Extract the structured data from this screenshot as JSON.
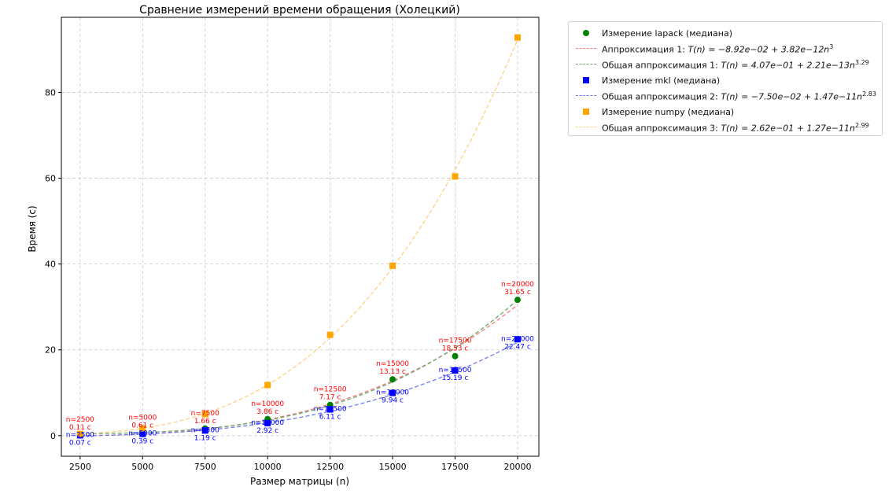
{
  "colors": {
    "lapack": "#008000",
    "lapack_fit": "#f08080",
    "lapack_general_fit": "#6aa86a",
    "mkl": "#0000ff",
    "mkl_fit": "#6f7ef0",
    "numpy": "#ffa500",
    "numpy_fit": "#ffd27f",
    "label_red": "#ff0000",
    "label_blue": "#0000ff",
    "grid": "#cccccc"
  },
  "legend": {
    "lapack_label": "Измерение lapack (медиана)",
    "fit1_prefix": "Аппроксимация 1: ",
    "fit1_formula": "T(n) = −8.92e−02 + 3.82e−12n",
    "fit1_exp": "3",
    "gen1_prefix": "Общая аппроксимация 1: ",
    "gen1_formula": "T(n) = 4.07e−01 + 2.21e−13n",
    "gen1_exp": "3.29",
    "mkl_label": "Измерение mkl (медиана)",
    "gen2_prefix": "Общая аппроксимация 2: ",
    "gen2_formula": "T(n) = −7.50e−02 + 1.47e−11n",
    "gen2_exp": "2.83",
    "numpy_label": "Измерение numpy (медиана)",
    "gen3_prefix": "Общая аппроксимация 3: ",
    "gen3_formula": "T(n) = 2.62e−01 + 1.27e−11n",
    "gen3_exp": "2.99"
  },
  "chart_data": {
    "type": "scatter",
    "title": "Сравнение измерений времени обращения (Холецкий)",
    "xlabel": "Размер матрицы (n)",
    "ylabel": "Время (с)",
    "xlim": [
      1750,
      20850
    ],
    "ylim": [
      -4.8,
      97.5
    ],
    "xticks": [
      2500,
      5000,
      7500,
      10000,
      12500,
      15000,
      17500,
      20000
    ],
    "xtick_labels": [
      "2500",
      "5000",
      "7500",
      "10000",
      "12500",
      "15000",
      "17500",
      "20000"
    ],
    "yticks": [
      0,
      20,
      40,
      60,
      80
    ],
    "ytick_labels": [
      "0",
      "20",
      "40",
      "60",
      "80"
    ],
    "grid": true,
    "legend_position": "outside-right",
    "x": [
      2500,
      5000,
      7500,
      10000,
      12500,
      15000,
      17500,
      20000
    ],
    "series": [
      {
        "name": "Измерение lapack (медиана)",
        "marker": "circle",
        "values": [
          0.11,
          0.61,
          1.66,
          3.86,
          7.17,
          13.13,
          18.53,
          31.65
        ],
        "annotations": [
          "n=2500\n0.11 с",
          "n=5000\n0.61 с",
          "n=7500\n1.66 с",
          "n=10000\n3.86 с",
          "n=12500\n7.17 с",
          "n=15000\n13.13 с",
          "n=17500\n18.53 с",
          "n=20000\n31.65 с"
        ]
      },
      {
        "name": "Измерение mkl (медиана)",
        "marker": "square",
        "values": [
          0.07,
          0.39,
          1.19,
          2.92,
          6.11,
          9.94,
          15.19,
          22.47
        ],
        "annotations": [
          "n=2500\n0.07 с",
          "n=5000\n0.39 с",
          "n=7500\n1.19 с",
          "n=10000\n2.92 с",
          "n=12500\n6.11 с",
          "n=15000\n9.94 с",
          "n=17500\n15.19 с",
          "n=20000\n22.47 с"
        ]
      },
      {
        "name": "Измерение numpy (медиана)",
        "marker": "square",
        "values": [
          0.4,
          1.7,
          5.0,
          11.8,
          23.5,
          39.6,
          60.4,
          92.8
        ]
      }
    ],
    "fits": [
      {
        "name": "Аппроксимация 1",
        "a": -0.0892,
        "b": 3.82e-12,
        "p": 3
      },
      {
        "name": "Общая аппроксимация 1",
        "a": 0.407,
        "b": 2.21e-13,
        "p": 3.29
      },
      {
        "name": "Общая аппроксимация 2",
        "a": -0.075,
        "b": 1.47e-11,
        "p": 2.83
      },
      {
        "name": "Общая аппроксимация 3",
        "a": 0.262,
        "b": 1.27e-11,
        "p": 2.99
      }
    ]
  }
}
